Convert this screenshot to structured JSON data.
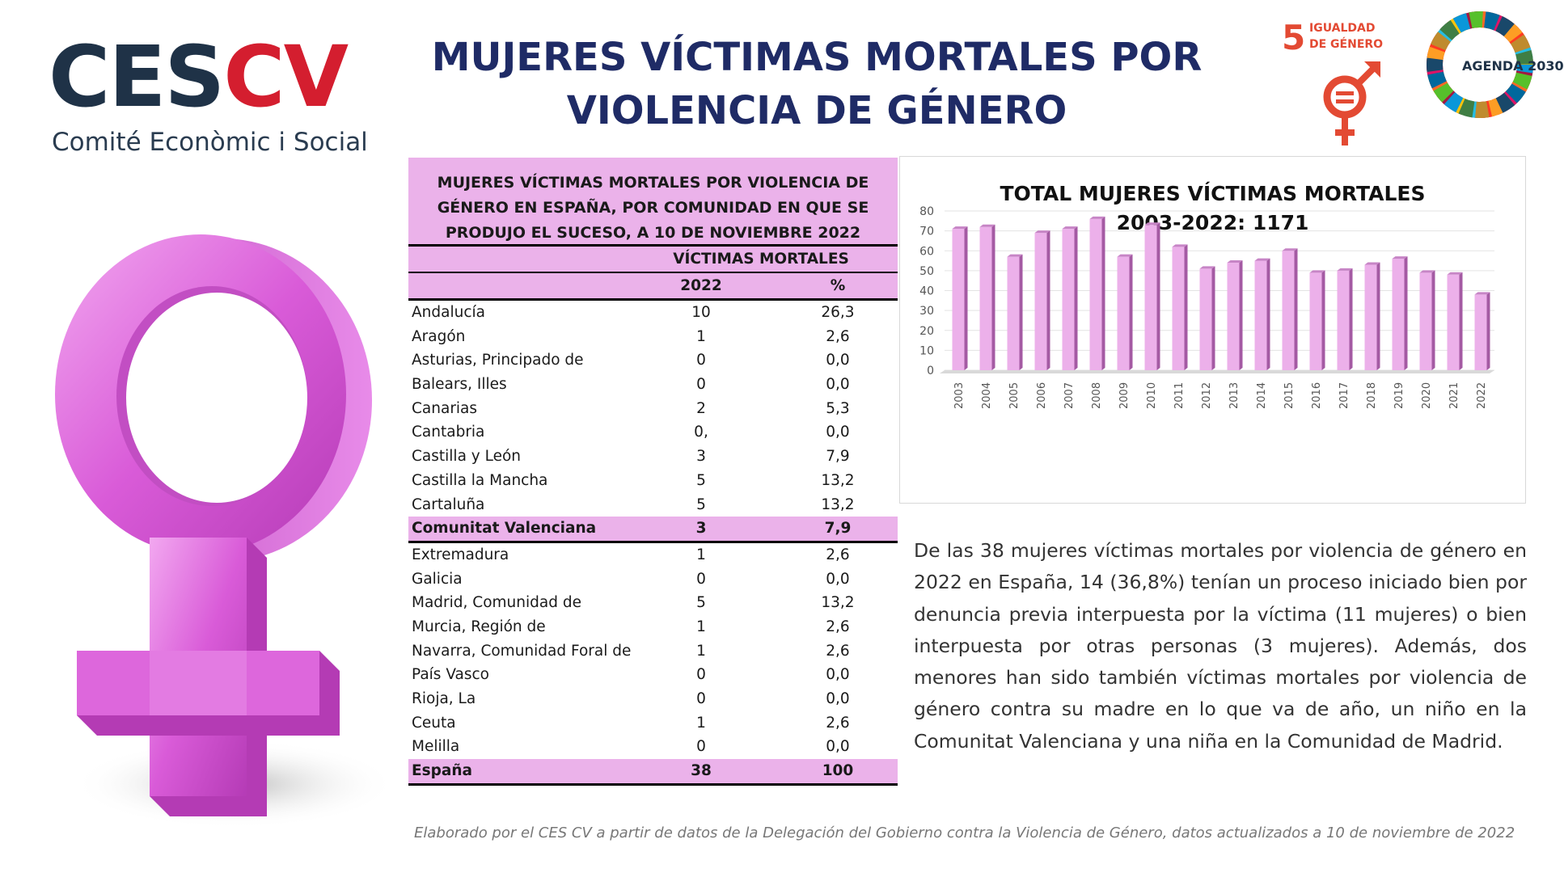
{
  "logo": {
    "part1": "CES",
    "part2": "CV",
    "subtitle": "Comité Econòmic i Social"
  },
  "title": {
    "line1": "MUJERES VÍCTIMAS MORTALES POR",
    "line2": "VIOLENCIA DE GÉNERO"
  },
  "sdg": {
    "number": "5",
    "label_line1": "IGUALDAD",
    "label_line2": "DE GÉNERO",
    "agenda": "AGENDA 2030"
  },
  "colors": {
    "title": "#1f2b66",
    "highlight": "#ebb2ea",
    "bar": "#e9a6e6",
    "logo_dark": "#1f3247",
    "logo_red": "#d41e2f",
    "symbol": "#d85fd6"
  },
  "icons": {
    "female_symbol": "venus-icon",
    "sdg5": "gender-equality-icon",
    "agenda": "sdg-wheel-icon"
  },
  "table": {
    "title_line1": "MUJERES VÍCTIMAS MORTALES POR VIOLENCIA DE",
    "title_line2": "GÉNERO EN ESPAÑA, POR COMUNIDAD EN QUE SE",
    "title_line3": "PRODUJO EL SUCESO, A 10 DE NOVIEMBRE 2022",
    "group_header": "VÍCTIMAS MORTALES",
    "col_year": "2022",
    "col_pct": "%",
    "rows": [
      {
        "name": "Andalucía",
        "v": "10",
        "p": "26,3"
      },
      {
        "name": "Aragón",
        "v": "1",
        "p": "2,6"
      },
      {
        "name": "Asturias, Principado de",
        "v": "0",
        "p": "0,0"
      },
      {
        "name": "Balears, Illes",
        "v": "0",
        "p": "0,0"
      },
      {
        "name": "Canarias",
        "v": "2",
        "p": "5,3"
      },
      {
        "name": "Cantabria",
        "v": "0,",
        "p": "0,0"
      },
      {
        "name": "Castilla y León",
        "v": "3",
        "p": "7,9"
      },
      {
        "name": "Castilla la Mancha",
        "v": "5",
        "p": "13,2"
      },
      {
        "name": "Cartaluña",
        "v": "5",
        "p": "13,2"
      },
      {
        "name": "Comunitat Valenciana",
        "v": "3",
        "p": "7,9"
      },
      {
        "name": "Extremadura",
        "v": "1",
        "p": "2,6"
      },
      {
        "name": "Galicia",
        "v": "0",
        "p": "0,0"
      },
      {
        "name": "Madrid, Comunidad de",
        "v": "5",
        "p": "13,2"
      },
      {
        "name": "Murcia, Región de",
        "v": "1",
        "p": "2,6"
      },
      {
        "name": "Navarra, Comunidad Foral de",
        "v": "1",
        "p": "2,6"
      },
      {
        "name": "País Vasco",
        "v": "0",
        "p": "0,0"
      },
      {
        "name": "Rioja, La",
        "v": "0",
        "p": "0,0"
      },
      {
        "name": "Ceuta",
        "v": "1",
        "p": "2,6"
      },
      {
        "name": "Melilla",
        "v": "0",
        "p": "0,0"
      },
      {
        "name": "España",
        "v": "38",
        "p": "100"
      }
    ]
  },
  "chart_data": {
    "type": "bar",
    "title_line1": "TOTAL MUJERES VÍCTIMAS MORTALES",
    "title_line2": "2003-2022: 1171",
    "categories": [
      "2003",
      "2004",
      "2005",
      "2006",
      "2007",
      "2008",
      "2009",
      "2010",
      "2011",
      "2012",
      "2013",
      "2014",
      "2015",
      "2016",
      "2017",
      "2018",
      "2019",
      "2020",
      "2021",
      "2022"
    ],
    "values": [
      71,
      72,
      57,
      69,
      71,
      76,
      57,
      73,
      62,
      51,
      54,
      55,
      60,
      49,
      50,
      53,
      56,
      49,
      48,
      38
    ],
    "ylim": [
      0,
      80
    ],
    "yticks": [
      0,
      10,
      20,
      30,
      40,
      50,
      60,
      70,
      80
    ],
    "grid": true,
    "legend": "none"
  },
  "paragraph": "De las 38 mujeres víctimas mortales por violencia de género en 2022 en España, 14 (36,8%) tenían un proceso iniciado bien por denuncia previa interpuesta por la víctima (11 mujeres) o bien interpuesta por otras personas (3 mujeres). Además, dos menores han sido también víctimas mortales por violencia de género contra su madre en lo que va de año, un niño en la Comunitat Valenciana y una niña en la Comunidad de Madrid.",
  "footer": "Elaborado por el CES CV a partir de datos de la Delegación del Gobierno contra la Violencia de Género, datos actualizados a 10 de noviembre de 2022"
}
